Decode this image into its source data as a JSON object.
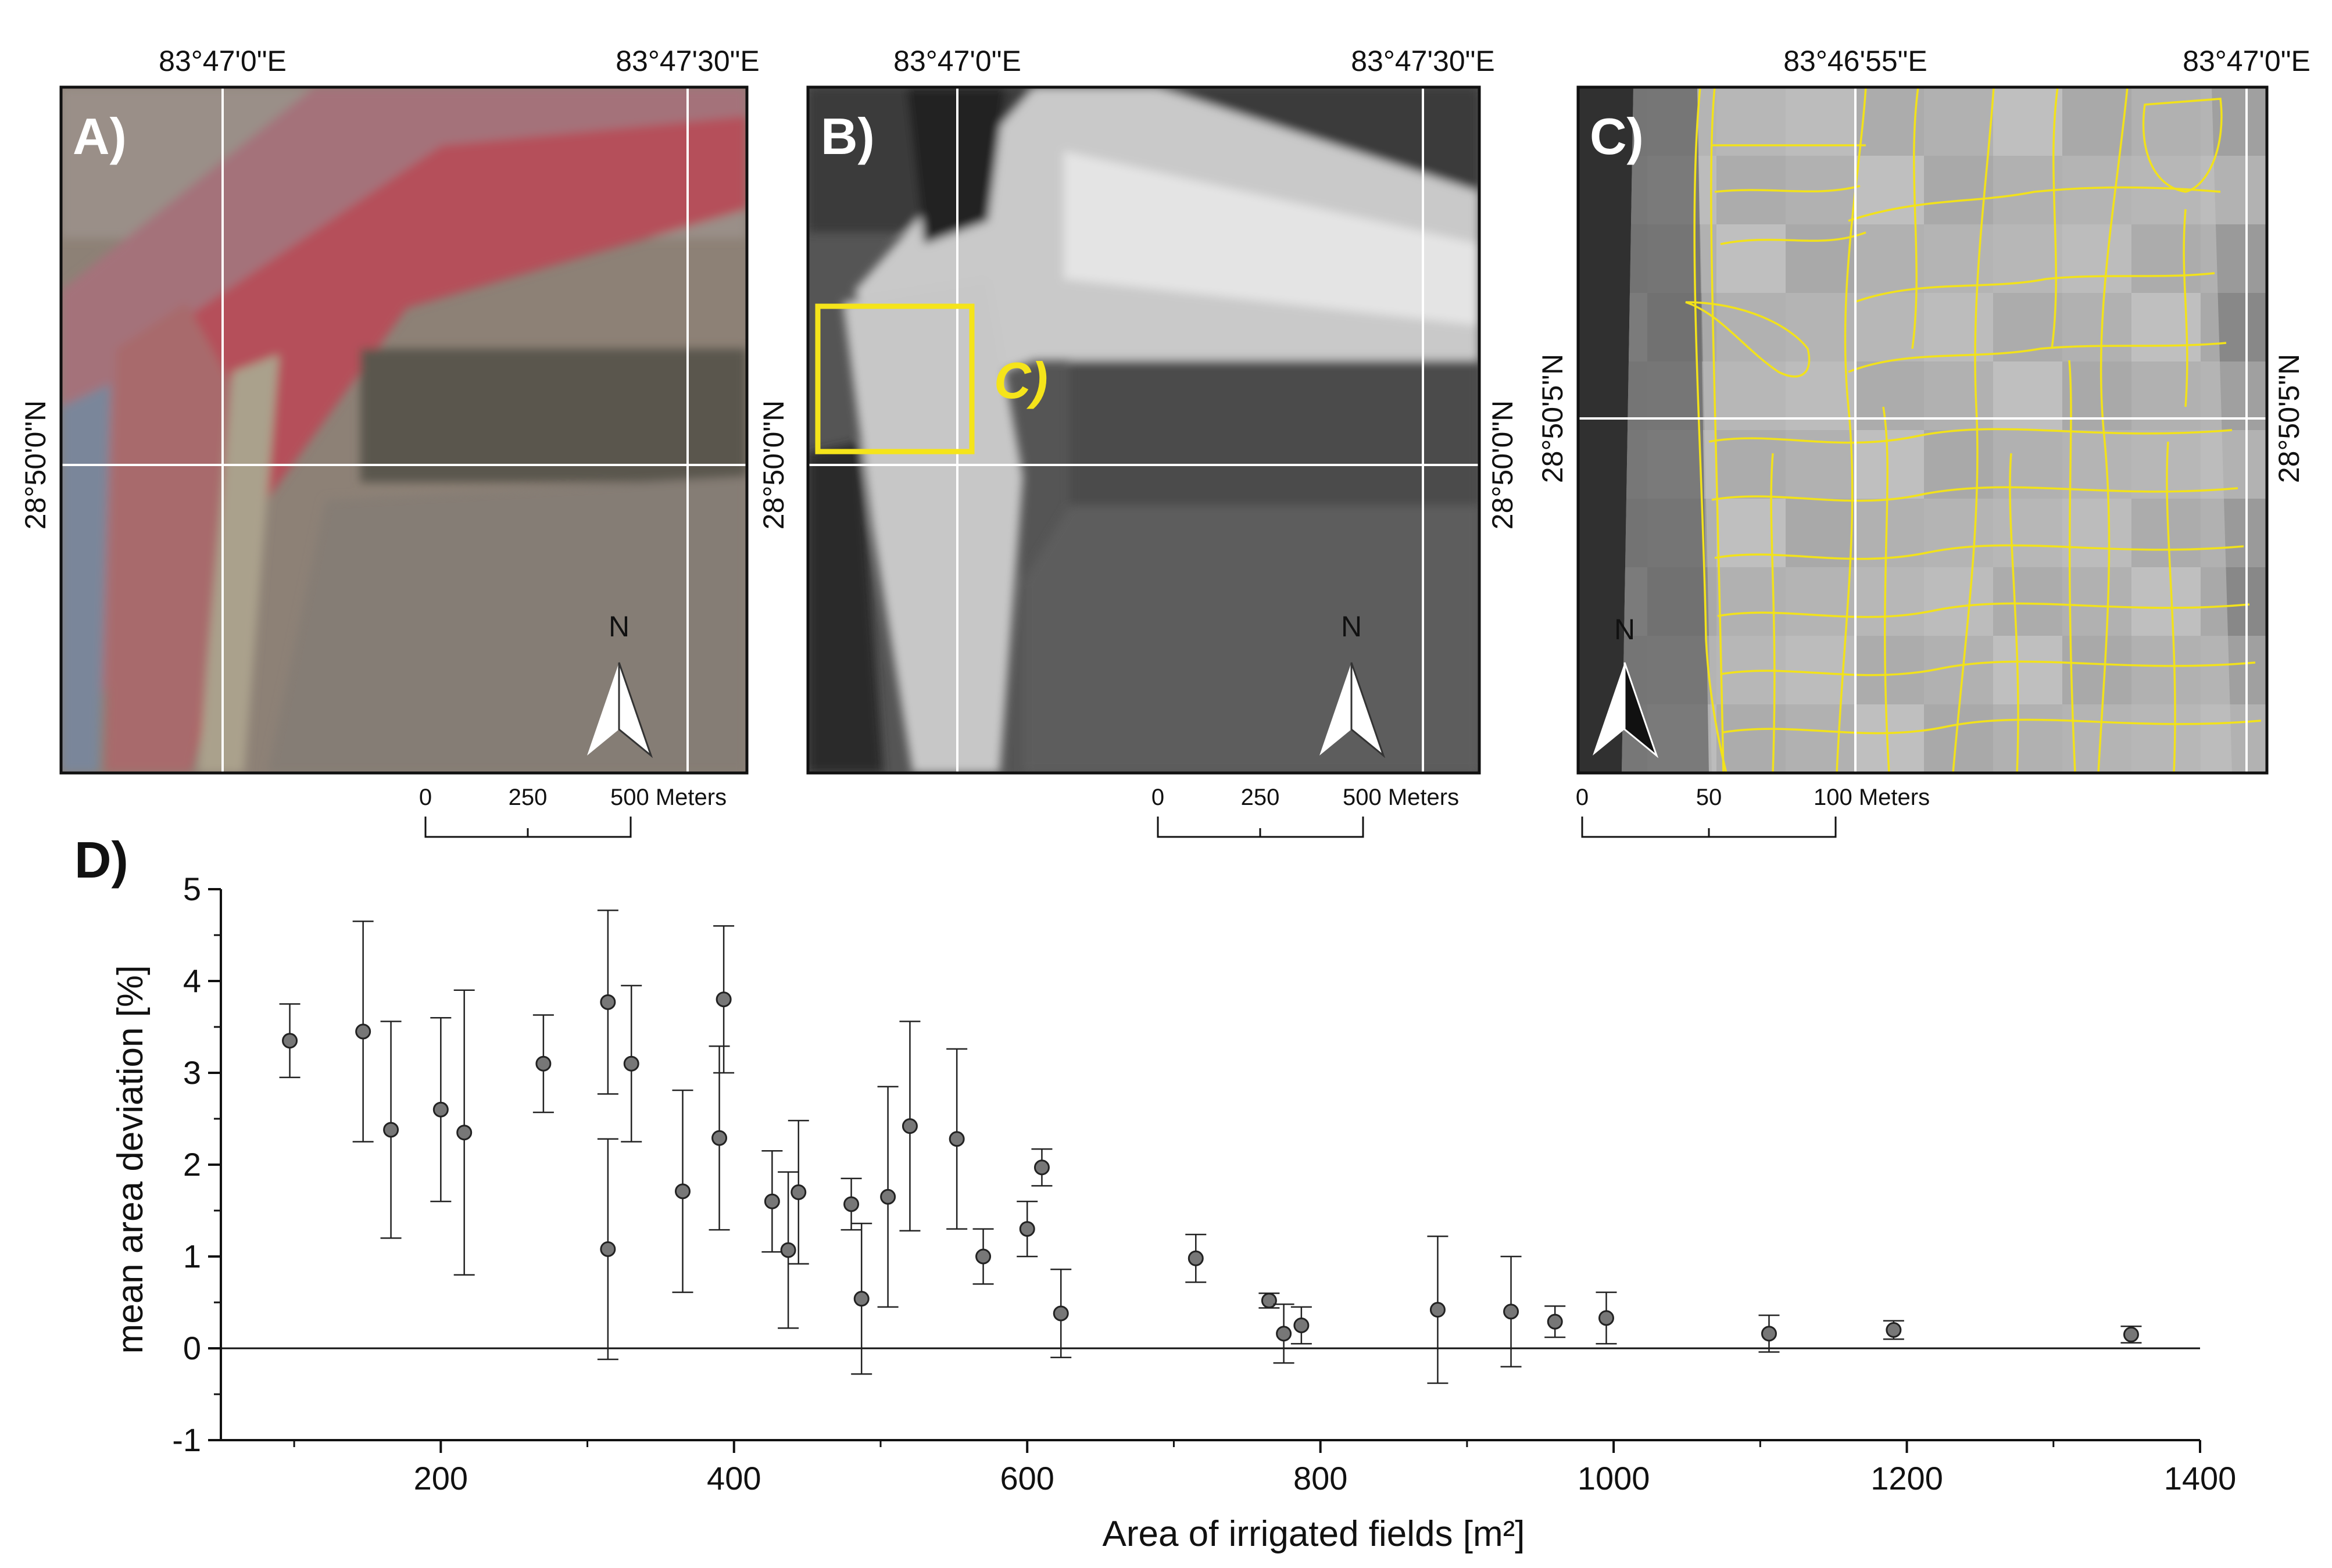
{
  "panels": [
    {
      "letter": "A)",
      "lon_labels": [
        "83°47'0\"E",
        "83°47'30\"E"
      ],
      "lat_label": "28°50'0\"N",
      "north": "N",
      "scale": {
        "ticks": [
          "0",
          "250",
          "500 Meters"
        ]
      }
    },
    {
      "letter": "B)",
      "lon_labels": [
        "83°47'0\"E",
        "83°47'30\"E"
      ],
      "lat_label": "28°50'0\"N",
      "north": "N",
      "inset_label": "C)",
      "scale": {
        "ticks": [
          "0",
          "250",
          "500 Meters"
        ]
      }
    },
    {
      "letter": "C)",
      "lon_labels": [
        "83°46'55\"E",
        "83°47'0\"E"
      ],
      "lat_label": "28°50'5\"N",
      "north": "N",
      "scale": {
        "ticks": [
          "0",
          "50",
          "100 Meters"
        ]
      }
    }
  ],
  "colors": {
    "rgb_field_red": "#b8484f",
    "yellow_outline": "#f2e21a",
    "frame": "#111111"
  },
  "chart_data": {
    "panel_letter": "D)",
    "type": "scatter",
    "xlabel": "Area of irrigated fields [m²]",
    "ylabel": "mean area deviation [%]",
    "xlim": [
      50,
      1400
    ],
    "ylim": [
      -1,
      5
    ],
    "x_ticks": [
      "200",
      "400",
      "600",
      "800",
      "1000",
      "1200",
      "1400"
    ],
    "y_ticks": [
      "-1",
      "0",
      "1",
      "2",
      "3",
      "4",
      "5"
    ],
    "zero_line": true,
    "points": [
      {
        "x": 97,
        "y": 3.35,
        "err": 0.4
      },
      {
        "x": 147,
        "y": 3.45,
        "err": 1.2
      },
      {
        "x": 166,
        "y": 2.38,
        "err": 1.18
      },
      {
        "x": 200,
        "y": 2.6,
        "err": 1.0
      },
      {
        "x": 216,
        "y": 2.35,
        "err": 1.55
      },
      {
        "x": 270,
        "y": 3.1,
        "err": 0.53
      },
      {
        "x": 314,
        "y": 3.77,
        "err": 1.0
      },
      {
        "x": 314,
        "y": 1.08,
        "err": 1.2
      },
      {
        "x": 330,
        "y": 3.1,
        "err": 0.85
      },
      {
        "x": 365,
        "y": 1.71,
        "err": 1.1
      },
      {
        "x": 390,
        "y": 2.29,
        "err": 1.0
      },
      {
        "x": 393,
        "y": 3.8,
        "err": 0.8
      },
      {
        "x": 426,
        "y": 1.6,
        "err": 0.55
      },
      {
        "x": 437,
        "y": 1.07,
        "err": 0.85
      },
      {
        "x": 444,
        "y": 1.7,
        "err": 0.78
      },
      {
        "x": 480,
        "y": 1.57,
        "err": 0.28
      },
      {
        "x": 487,
        "y": 0.54,
        "err": 0.82
      },
      {
        "x": 505,
        "y": 1.65,
        "err": 1.2
      },
      {
        "x": 520,
        "y": 2.42,
        "err": 1.14
      },
      {
        "x": 552,
        "y": 2.28,
        "err": 0.98
      },
      {
        "x": 570,
        "y": 1.0,
        "err": 0.3
      },
      {
        "x": 600,
        "y": 1.3,
        "err": 0.3
      },
      {
        "x": 610,
        "y": 1.97,
        "err": 0.2
      },
      {
        "x": 623,
        "y": 0.38,
        "err": 0.48
      },
      {
        "x": 715,
        "y": 0.98,
        "err": 0.26
      },
      {
        "x": 765,
        "y": 0.52,
        "err": 0.08
      },
      {
        "x": 775,
        "y": 0.16,
        "err": 0.32
      },
      {
        "x": 787,
        "y": 0.25,
        "err": 0.2
      },
      {
        "x": 880,
        "y": 0.42,
        "err": 0.8
      },
      {
        "x": 930,
        "y": 0.4,
        "err": 0.6
      },
      {
        "x": 960,
        "y": 0.29,
        "err": 0.17
      },
      {
        "x": 995,
        "y": 0.33,
        "err": 0.28
      },
      {
        "x": 1106,
        "y": 0.16,
        "err": 0.2
      },
      {
        "x": 1191,
        "y": 0.2,
        "err": 0.1
      },
      {
        "x": 1353,
        "y": 0.15,
        "err": 0.09
      }
    ]
  }
}
